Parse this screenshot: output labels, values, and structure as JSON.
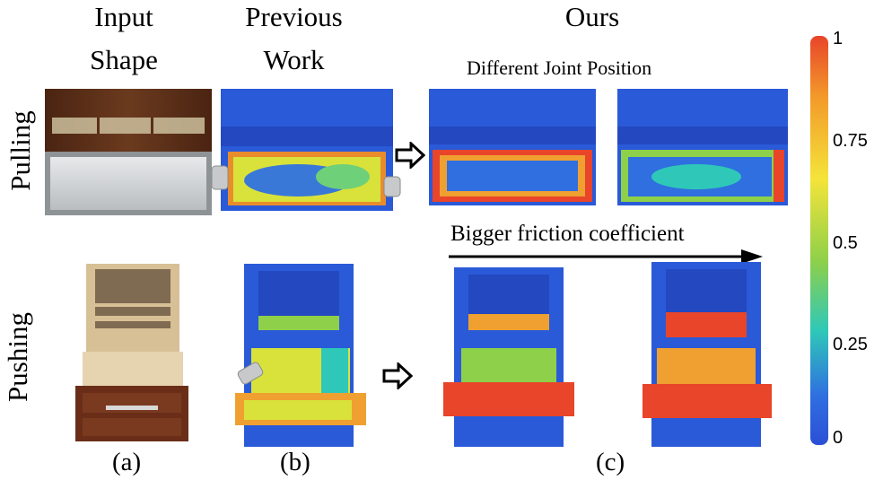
{
  "columns": {
    "a_line1": "Input",
    "a_line2": "Shape",
    "b_line1": "Previous",
    "b_line2": "Work",
    "c_title": "Ours",
    "c_subtitle": "Different Joint Position"
  },
  "rows": {
    "top": "Pulling",
    "bottom": "Pushing"
  },
  "arrow_label": "Bigger friction coefficient",
  "captions": [
    "(a)",
    "(b)",
    "(c)"
  ],
  "colorbar": {
    "ticks": [
      "1",
      "0.75",
      "0.5",
      "0.25",
      "0"
    ],
    "colors": [
      "#e8452a",
      "#f39a2a",
      "#f4e43a",
      "#8ed04a",
      "#2fc8b8",
      "#2f6fe0",
      "#2b4fd6"
    ]
  }
}
